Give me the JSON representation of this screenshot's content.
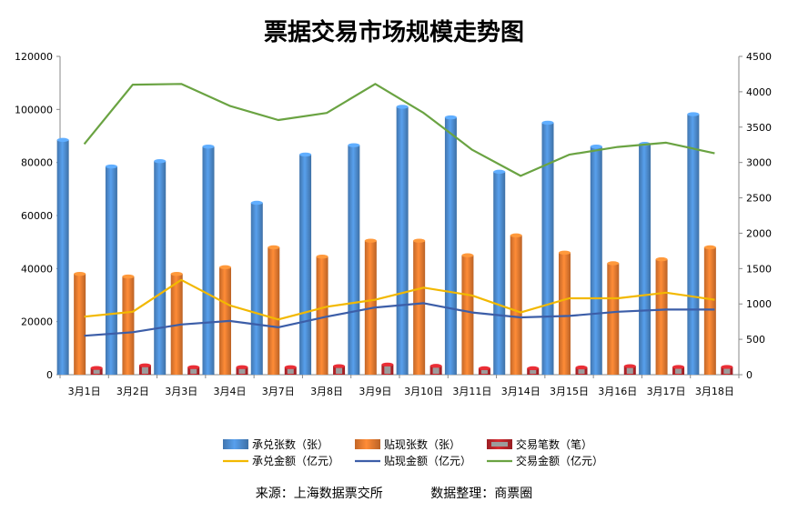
{
  "chart_data": {
    "type": "bar",
    "title": "票据交易市场规模走势图",
    "categories": [
      "3月1日",
      "3月2日",
      "3月3日",
      "3月4日",
      "3月7日",
      "3月8日",
      "3月9日",
      "3月10日",
      "3月11日",
      "3月14日",
      "3月15日",
      "3月16日",
      "3月17日",
      "3月18日"
    ],
    "left_axis": {
      "ylim": [
        0,
        120000
      ],
      "ticks": [
        0,
        20000,
        40000,
        60000,
        80000,
        100000,
        120000
      ]
    },
    "right_axis": {
      "ylim": [
        0,
        4500
      ],
      "ticks": [
        0,
        500,
        1000,
        1500,
        2000,
        2500,
        3000,
        3500,
        4000,
        4500
      ]
    },
    "grid": false,
    "legend_position": "bottom",
    "series": [
      {
        "name": "承兑张数（张）",
        "type": "bar",
        "axis": "left",
        "color": "#4f8fd4",
        "values": [
          88500,
          78500,
          80500,
          86000,
          64800,
          83000,
          86500,
          101000,
          97000,
          76500,
          95000,
          86000,
          87000,
          98200
        ]
      },
      {
        "name": "贴现张数（张）",
        "type": "bar",
        "axis": "left",
        "color": "#ee7d31",
        "values": [
          38000,
          37000,
          38000,
          40500,
          48000,
          44500,
          50500,
          50500,
          45000,
          52500,
          46000,
          42000,
          43500,
          48000
        ]
      },
      {
        "name": "交易笔数（笔）",
        "type": "bar",
        "axis": "left",
        "color": "#c0262c",
        "values": [
          2500,
          3500,
          2800,
          2800,
          2800,
          3200,
          3800,
          3300,
          2400,
          2400,
          2700,
          3200,
          2900,
          2900
        ]
      },
      {
        "name": "承兑金额（亿元）",
        "type": "line",
        "axis": "right",
        "color": "#f2b800",
        "values": [
          820,
          890,
          1340,
          980,
          780,
          960,
          1060,
          1230,
          1120,
          880,
          1080,
          1080,
          1160,
          1060
        ]
      },
      {
        "name": "贴现金额（亿元）",
        "type": "line",
        "axis": "right",
        "color": "#3c5ea8",
        "values": [
          550,
          600,
          710,
          760,
          670,
          820,
          950,
          1010,
          880,
          810,
          830,
          890,
          920,
          920
        ]
      },
      {
        "name": "交易金额（亿元）",
        "type": "line",
        "axis": "right",
        "color": "#6aa342",
        "values": [
          3260,
          4100,
          4110,
          3800,
          3600,
          3700,
          4110,
          3700,
          3180,
          2810,
          3110,
          3220,
          3280,
          3130
        ]
      }
    ]
  },
  "footer": {
    "source": "来源：上海数据票交所",
    "compiler": "数据整理：商票圈"
  }
}
